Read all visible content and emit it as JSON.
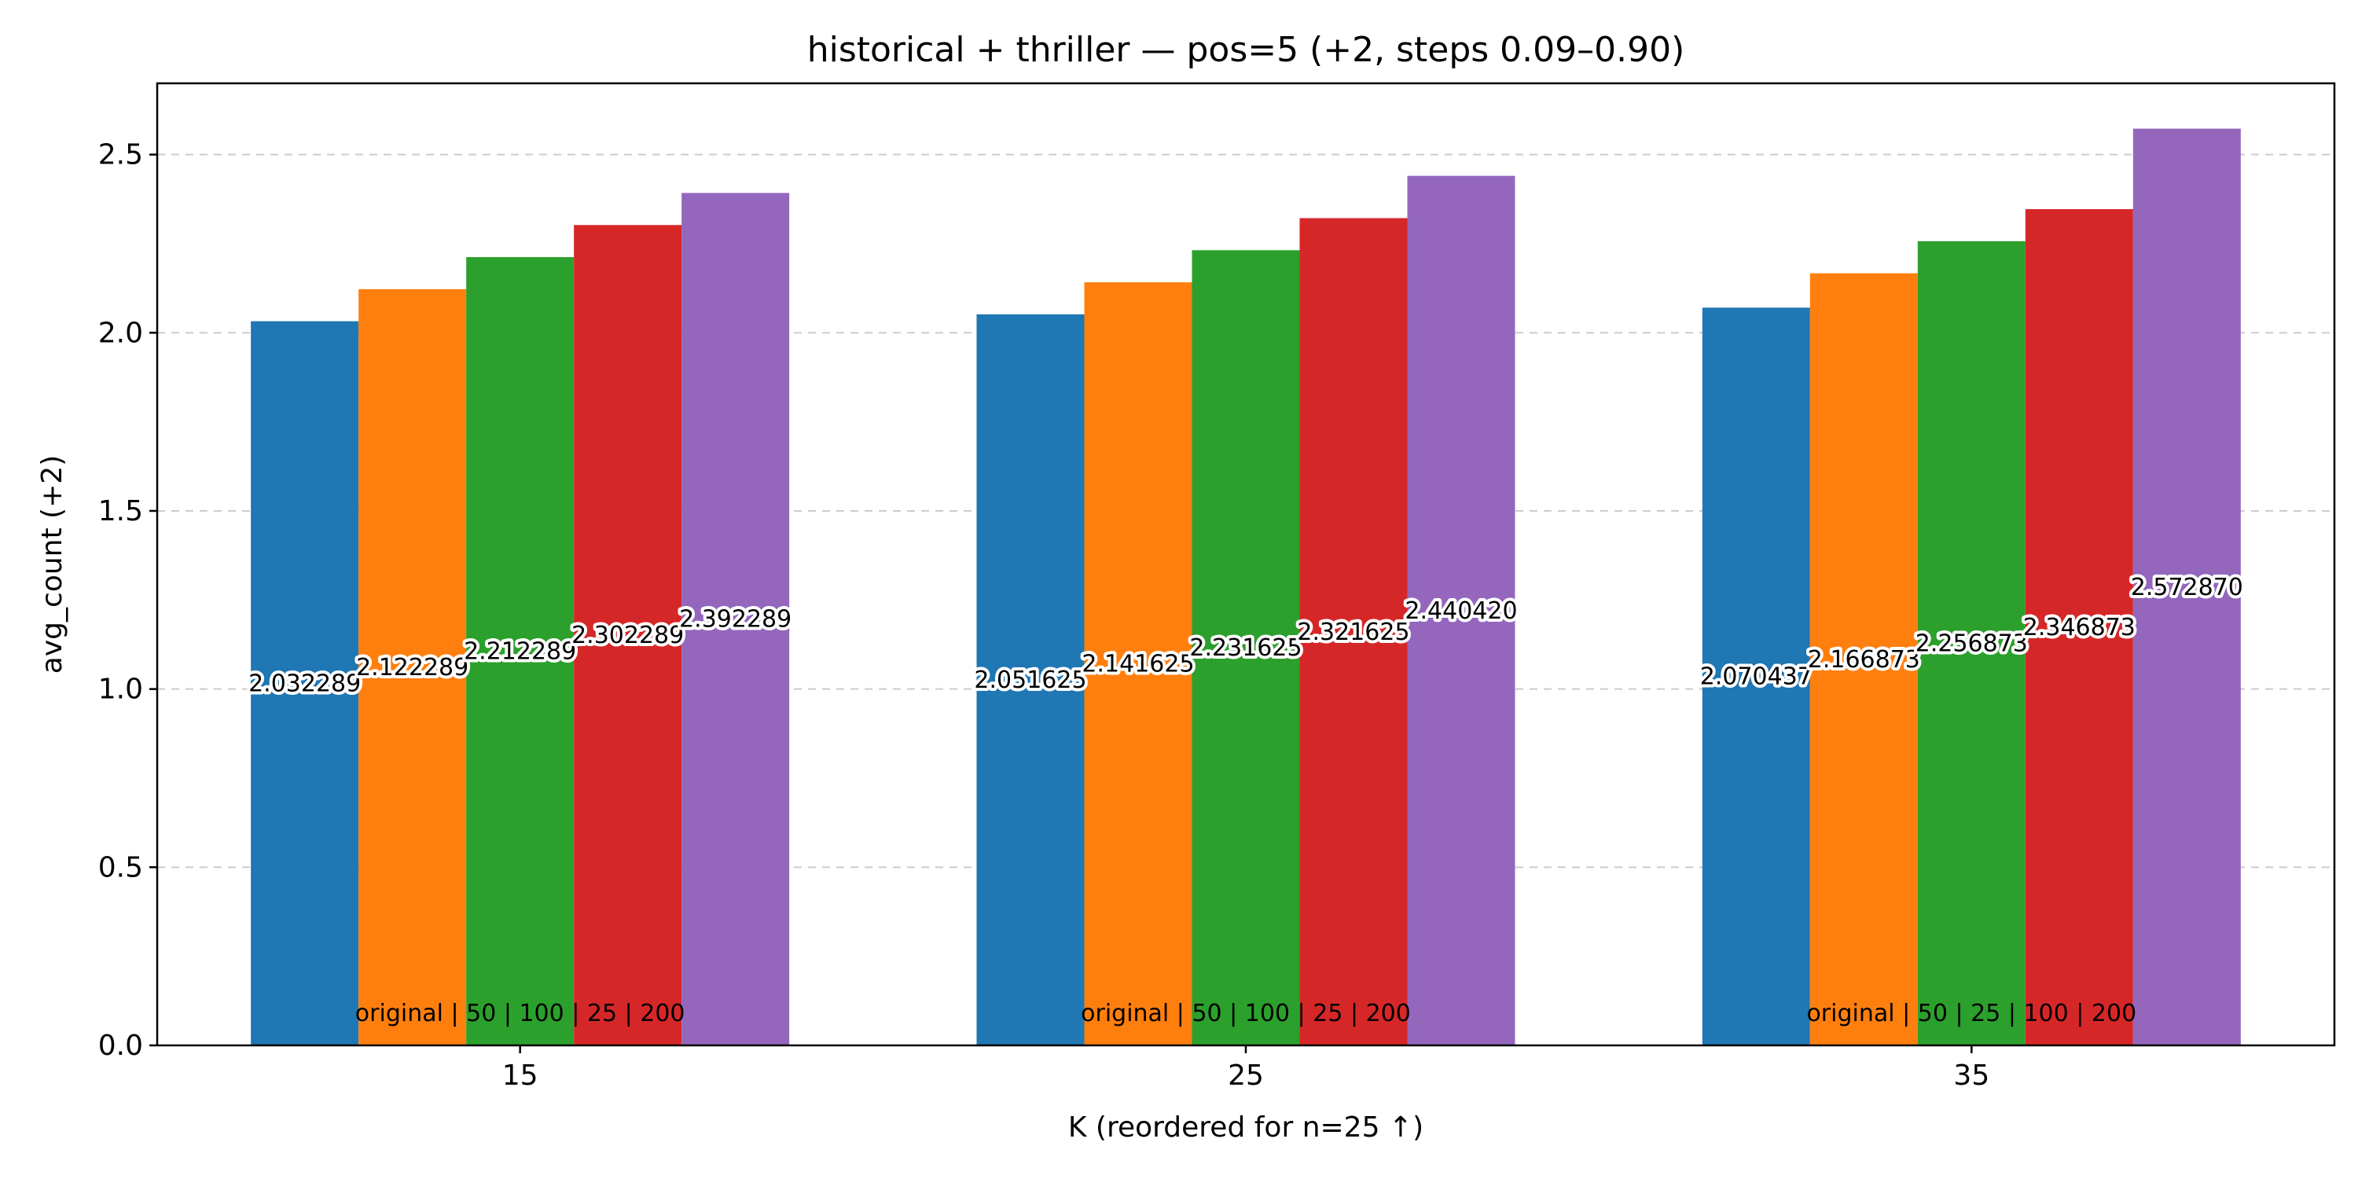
{
  "chart_data": {
    "type": "bar",
    "title": "historical + thriller — pos=5 (+2, steps 0.09–0.90)",
    "xlabel": "K (reordered for n=25 ↑)",
    "ylabel": "avg_count (+2)",
    "ylim": [
      0,
      2.7
    ],
    "yticks": [
      "0.0",
      "0.5",
      "1.0",
      "1.5",
      "2.0",
      "2.5"
    ],
    "grid": "y-dashed",
    "colors": [
      "#1f77b4",
      "#ff7f0e",
      "#2ca02c",
      "#d62728",
      "#9467bd"
    ],
    "groups": [
      {
        "category": "15",
        "order_label": "original | 50 | 100 | 25 | 200",
        "values": [
          2.032289,
          2.122289,
          2.212289,
          2.302289,
          2.392289
        ],
        "labels": [
          "2.032289",
          "2.122289",
          "2.212289",
          "2.302289",
          "2.392289"
        ]
      },
      {
        "category": "25",
        "order_label": "original | 50 | 100 | 25 | 200",
        "values": [
          2.051625,
          2.141625,
          2.231625,
          2.321625,
          2.44042
        ],
        "labels": [
          "2.051625",
          "2.141625",
          "2.231625",
          "2.321625",
          "2.440420"
        ]
      },
      {
        "category": "35",
        "order_label": "original | 50 | 25 | 100 | 200",
        "values": [
          2.070437,
          2.166873,
          2.256873,
          2.346873,
          2.57287
        ],
        "labels": [
          "2.070437",
          "2.166873",
          "2.256873",
          "2.346873",
          "2.572870"
        ]
      }
    ]
  }
}
